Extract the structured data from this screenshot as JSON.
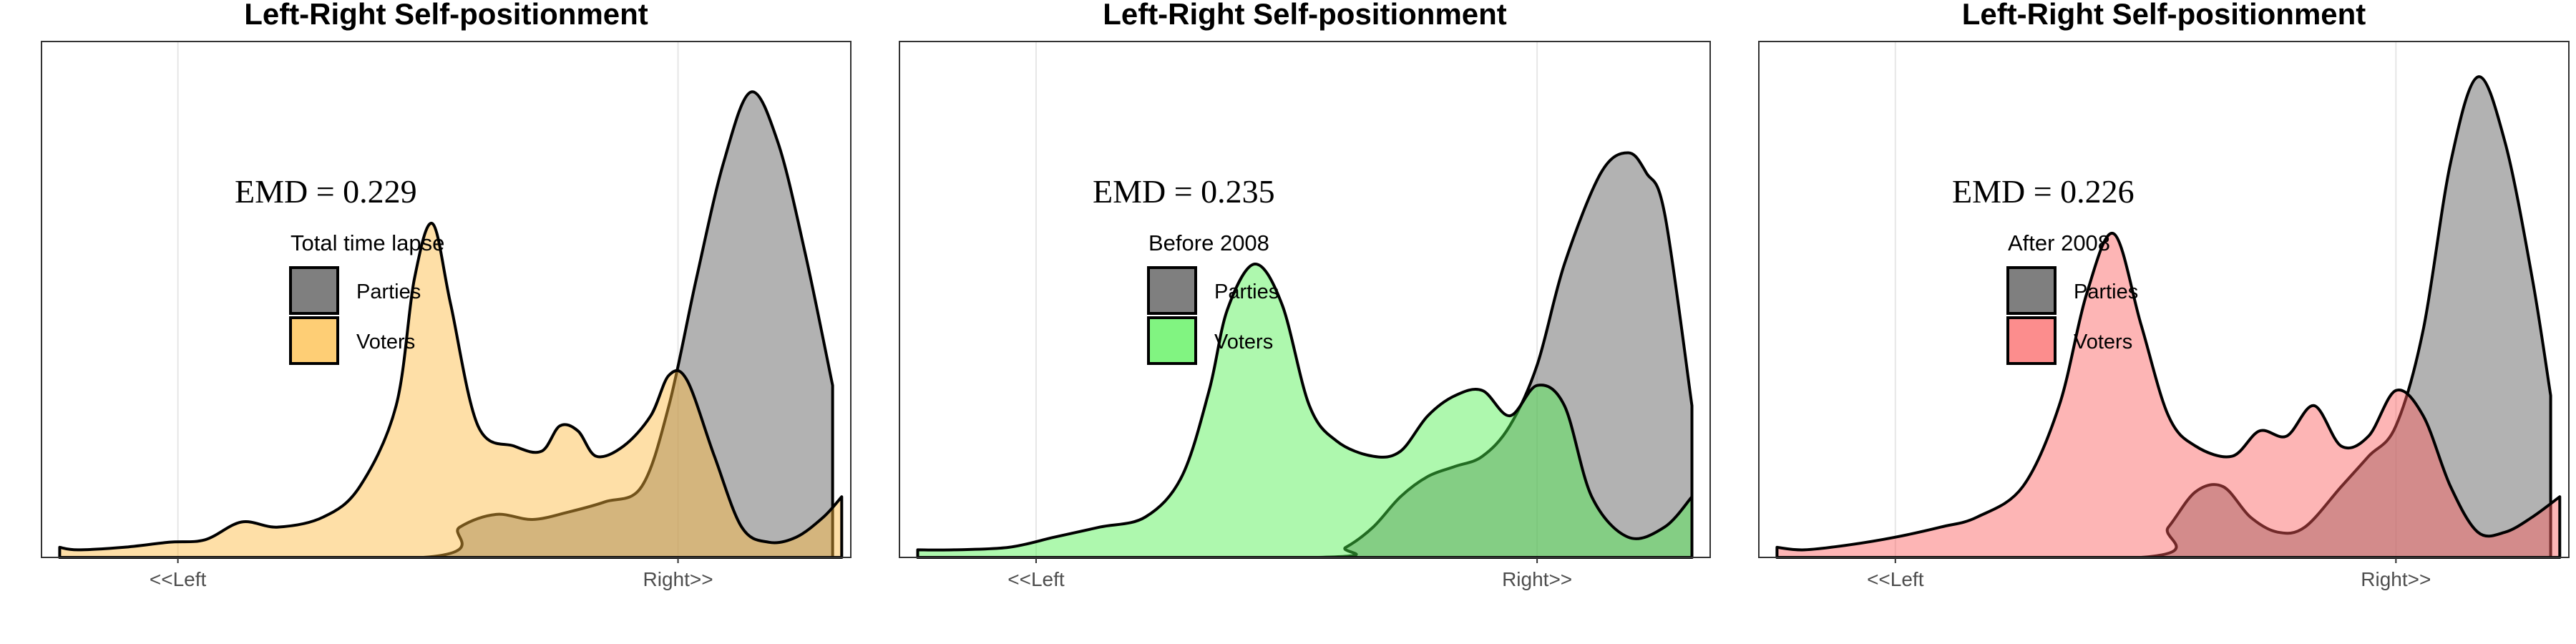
{
  "chart_data": [
    {
      "type": "area",
      "title": "Left-Right Self-positionment",
      "annotation": "EMD = 0.229",
      "legend": {
        "title": "Total time lapse",
        "placement": "top-left",
        "entries": [
          "Parties",
          "Voters"
        ]
      },
      "xticks": [
        "<<Left",
        "Right>>"
      ],
      "xtick_values": [
        0.13,
        0.68
      ],
      "xlim": [
        -0.02,
        0.87
      ],
      "ylim": [
        0,
        1.02
      ],
      "grid": true,
      "colors": {
        "Parties": "#7f7f7f",
        "Voters": "#fdb93b"
      },
      "series": [
        {
          "name": "Parties",
          "x": [
            0.0,
            0.4,
            0.44,
            0.48,
            0.52,
            0.56,
            0.6,
            0.64,
            0.67,
            0.7,
            0.73,
            0.76,
            0.79,
            0.82,
            0.85
          ],
          "y": [
            0.0,
            0.0,
            0.06,
            0.085,
            0.075,
            0.09,
            0.11,
            0.14,
            0.3,
            0.55,
            0.78,
            0.92,
            0.82,
            0.6,
            0.34
          ]
        },
        {
          "name": "Voters",
          "x": [
            0.0,
            0.02,
            0.07,
            0.12,
            0.16,
            0.2,
            0.24,
            0.29,
            0.33,
            0.37,
            0.39,
            0.41,
            0.43,
            0.46,
            0.5,
            0.53,
            0.55,
            0.57,
            0.59,
            0.62,
            0.65,
            0.67,
            0.69,
            0.72,
            0.75,
            0.78,
            0.81,
            0.84,
            0.86
          ],
          "y": [
            0.02,
            0.015,
            0.02,
            0.03,
            0.035,
            0.07,
            0.06,
            0.08,
            0.14,
            0.3,
            0.55,
            0.66,
            0.5,
            0.26,
            0.22,
            0.21,
            0.26,
            0.25,
            0.2,
            0.22,
            0.28,
            0.36,
            0.35,
            0.2,
            0.06,
            0.03,
            0.04,
            0.08,
            0.12
          ]
        }
      ]
    },
    {
      "type": "area",
      "title": "Left-Right Self-positionment",
      "annotation": "EMD = 0.235",
      "legend": {
        "title": "Before 2008",
        "placement": "top-left",
        "entries": [
          "Parties",
          "Voters"
        ]
      },
      "xticks": [
        "<<Left",
        "Right>>"
      ],
      "xtick_values": [
        0.13,
        0.68
      ],
      "xlim": [
        -0.02,
        0.87
      ],
      "ylim": [
        0,
        1.02
      ],
      "grid": true,
      "colors": {
        "Parties": "#7f7f7f",
        "Voters": "#4cf04c"
      },
      "series": [
        {
          "name": "Parties",
          "x": [
            0.0,
            0.44,
            0.47,
            0.5,
            0.53,
            0.56,
            0.59,
            0.62,
            0.65,
            0.68,
            0.71,
            0.75,
            0.78,
            0.8,
            0.82,
            0.85
          ],
          "y": [
            0.0,
            0.0,
            0.02,
            0.06,
            0.12,
            0.16,
            0.18,
            0.2,
            0.26,
            0.38,
            0.58,
            0.76,
            0.8,
            0.76,
            0.68,
            0.3
          ]
        },
        {
          "name": "Voters",
          "x": [
            0.0,
            0.04,
            0.1,
            0.15,
            0.2,
            0.25,
            0.29,
            0.32,
            0.34,
            0.37,
            0.4,
            0.43,
            0.46,
            0.5,
            0.53,
            0.56,
            0.59,
            0.62,
            0.65,
            0.68,
            0.71,
            0.74,
            0.78,
            0.82,
            0.85
          ],
          "y": [
            0.015,
            0.015,
            0.02,
            0.04,
            0.06,
            0.08,
            0.16,
            0.33,
            0.49,
            0.58,
            0.5,
            0.3,
            0.23,
            0.2,
            0.21,
            0.28,
            0.32,
            0.33,
            0.28,
            0.34,
            0.3,
            0.12,
            0.04,
            0.06,
            0.12
          ]
        }
      ]
    },
    {
      "type": "area",
      "title": "Left-Right Self-positionment",
      "annotation": "EMD = 0.226",
      "legend": {
        "title": "After 2008",
        "placement": "top-left",
        "entries": [
          "Parties",
          "Voters"
        ]
      },
      "xticks": [
        "<<Left",
        "Right>>"
      ],
      "xtick_values": [
        0.13,
        0.68
      ],
      "xlim": [
        -0.02,
        0.87
      ],
      "ylim": [
        0,
        1.02
      ],
      "grid": true,
      "colors": {
        "Parties": "#7f7f7f",
        "Voters": "#fb5c5c"
      },
      "series": [
        {
          "name": "Parties",
          "x": [
            0.0,
            0.4,
            0.43,
            0.46,
            0.49,
            0.52,
            0.55,
            0.58,
            0.62,
            0.65,
            0.68,
            0.71,
            0.74,
            0.77,
            0.8,
            0.83,
            0.85
          ],
          "y": [
            0.0,
            0.0,
            0.06,
            0.13,
            0.14,
            0.08,
            0.05,
            0.06,
            0.14,
            0.2,
            0.26,
            0.45,
            0.78,
            0.95,
            0.82,
            0.55,
            0.32
          ]
        },
        {
          "name": "Voters",
          "x": [
            0.0,
            0.03,
            0.08,
            0.13,
            0.18,
            0.22,
            0.27,
            0.31,
            0.34,
            0.37,
            0.4,
            0.43,
            0.46,
            0.5,
            0.53,
            0.56,
            0.59,
            0.62,
            0.65,
            0.68,
            0.71,
            0.74,
            0.77,
            0.8,
            0.83,
            0.86
          ],
          "y": [
            0.02,
            0.015,
            0.025,
            0.04,
            0.06,
            0.08,
            0.14,
            0.3,
            0.52,
            0.64,
            0.46,
            0.28,
            0.22,
            0.2,
            0.25,
            0.24,
            0.3,
            0.22,
            0.24,
            0.33,
            0.28,
            0.14,
            0.05,
            0.05,
            0.08,
            0.12
          ]
        }
      ]
    }
  ]
}
